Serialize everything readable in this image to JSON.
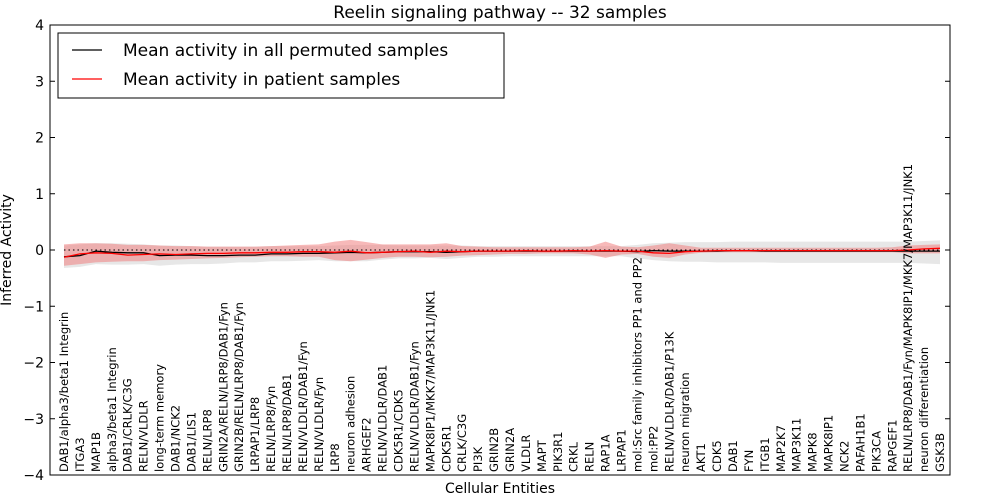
{
  "chart_data": {
    "type": "line",
    "title": "Reelin signaling pathway -- 32 samples",
    "xlabel": "Cellular Entities",
    "ylabel": "Inferred Activity",
    "ylim": [
      -4,
      4
    ],
    "yticks": [
      "−4",
      "−3",
      "−2",
      "−1",
      "0",
      "1",
      "2",
      "3",
      "4"
    ],
    "grid": false,
    "legend_position": "top-left",
    "categories": [
      "DAB1/alpha3/beta1 Integrin",
      "ITGA3",
      "MAP1B",
      "alpha3/beta1 Integrin",
      "DAB1/CRLK/C3G",
      "RELN/VLDLR",
      "long-term memory",
      "DAB1/NCK2",
      "DAB1/LIS1",
      "RELN/LRP8",
      "GRIN2A/RELN/LRP8/DAB1/Fyn",
      "GRIN2B/RELN/LRP8/DAB1/Fyn",
      "LRPAP1/LRP8",
      "RELN/LRP8/Fyn",
      "RELN/LRP8/DAB1",
      "RELN/VLDLR/DAB1/Fyn",
      "RELN/VLDLR/Fyn",
      "LRP8",
      "neuron adhesion",
      "ARHGEF2",
      "RELN/VLDLR/DAB1",
      "CDK5R1/CDK5",
      "RELN/VLDLR/DAB1/Fyn",
      "MAPK8IP1/MKK7/MAP3K11/JNK1",
      "CDK5R1",
      "CRLK/C3G",
      "PI3K",
      "GRIN2B",
      "GRIN2A",
      "VLDLR",
      "MAPT",
      "PIK3R1",
      "CRKL",
      "RELN",
      "RAP1A",
      "LRPAP1",
      "mol:Src family inhibitors PP1 and PP2",
      "mol:PP2",
      "RELN/VLDLR/DAB1/P13K",
      "neuron migration",
      "AKT1",
      "CDK5",
      "DAB1",
      "FYN",
      "ITGB1",
      "MAP2K7",
      "MAP3K11",
      "MAPK8",
      "MAPK8IP1",
      "NCK2",
      "PAFAH1B1",
      "PIK3CA",
      "RAPGEF1",
      "RELN/LRP8/DAB1/Fyn/MAPK8IP1/MKK7/MAP3K11/JNK1",
      "neuron differentiation",
      "GSK3B"
    ],
    "series": [
      {
        "name": "Mean activity in all permuted samples",
        "color": "#000000",
        "style": "solid",
        "values": [
          -0.12,
          -0.1,
          -0.02,
          -0.04,
          -0.05,
          -0.05,
          -0.1,
          -0.09,
          -0.09,
          -0.1,
          -0.1,
          -0.09,
          -0.09,
          -0.07,
          -0.07,
          -0.06,
          -0.06,
          -0.05,
          -0.04,
          -0.05,
          -0.04,
          -0.03,
          -0.03,
          -0.03,
          -0.04,
          -0.03,
          -0.02,
          -0.02,
          -0.02,
          -0.02,
          -0.02,
          -0.02,
          -0.02,
          -0.02,
          -0.02,
          -0.02,
          -0.03,
          -0.01,
          -0.02,
          -0.02,
          -0.02,
          -0.02,
          -0.01,
          -0.01,
          -0.02,
          -0.02,
          -0.02,
          -0.02,
          -0.02,
          -0.02,
          -0.02,
          -0.02,
          -0.02,
          -0.02,
          -0.02,
          -0.02
        ],
        "band_low": [
          -0.32,
          -0.3,
          -0.25,
          -0.26,
          -0.26,
          -0.25,
          -0.28,
          -0.26,
          -0.25,
          -0.25,
          -0.24,
          -0.22,
          -0.22,
          -0.2,
          -0.2,
          -0.19,
          -0.18,
          -0.2,
          -0.2,
          -0.2,
          -0.17,
          -0.15,
          -0.15,
          -0.14,
          -0.16,
          -0.14,
          -0.12,
          -0.12,
          -0.11,
          -0.11,
          -0.11,
          -0.11,
          -0.11,
          -0.11,
          -0.11,
          -0.11,
          -0.15,
          -0.18,
          -0.2,
          -0.21,
          -0.21,
          -0.22,
          -0.22,
          -0.22,
          -0.22,
          -0.23,
          -0.23,
          -0.23,
          -0.23,
          -0.23,
          -0.23,
          -0.23,
          -0.23,
          -0.23,
          -0.24,
          -0.25
        ],
        "band_high": [
          0.08,
          0.1,
          0.12,
          0.12,
          0.11,
          0.1,
          0.08,
          0.08,
          0.07,
          0.06,
          0.06,
          0.06,
          0.06,
          0.07,
          0.07,
          0.07,
          0.07,
          0.08,
          0.09,
          0.09,
          0.09,
          0.08,
          0.08,
          0.08,
          0.08,
          0.08,
          0.07,
          0.07,
          0.07,
          0.07,
          0.07,
          0.07,
          0.07,
          0.07,
          0.07,
          0.07,
          0.09,
          0.12,
          0.13,
          0.14,
          0.14,
          0.14,
          0.15,
          0.15,
          0.15,
          0.15,
          0.15,
          0.15,
          0.15,
          0.15,
          0.15,
          0.15,
          0.15,
          0.15,
          0.16,
          0.17
        ]
      },
      {
        "name": "Mean activity in patient samples",
        "color": "#ff0000",
        "style": "solid",
        "values": [
          -0.13,
          -0.07,
          -0.05,
          -0.06,
          -0.09,
          -0.08,
          -0.07,
          -0.08,
          -0.07,
          -0.06,
          -0.06,
          -0.05,
          -0.05,
          -0.04,
          -0.04,
          -0.03,
          -0.03,
          -0.04,
          -0.02,
          -0.05,
          -0.04,
          -0.03,
          -0.02,
          -0.04,
          -0.02,
          -0.03,
          -0.02,
          -0.02,
          -0.02,
          -0.01,
          -0.02,
          -0.02,
          -0.01,
          -0.02,
          -0.01,
          -0.02,
          -0.02,
          -0.05,
          -0.06,
          -0.03,
          -0.02,
          -0.01,
          -0.01,
          -0.01,
          -0.01,
          -0.01,
          -0.01,
          -0.01,
          -0.01,
          -0.01,
          -0.01,
          -0.01,
          -0.01,
          0.0,
          0.02,
          0.03
        ],
        "band_low": [
          -0.28,
          -0.25,
          -0.22,
          -0.21,
          -0.2,
          -0.2,
          -0.18,
          -0.17,
          -0.16,
          -0.15,
          -0.14,
          -0.13,
          -0.12,
          -0.11,
          -0.11,
          -0.12,
          -0.12,
          -0.18,
          -0.2,
          -0.17,
          -0.14,
          -0.12,
          -0.12,
          -0.13,
          -0.12,
          -0.1,
          -0.09,
          -0.08,
          -0.07,
          -0.07,
          -0.06,
          -0.06,
          -0.06,
          -0.08,
          -0.14,
          -0.08,
          -0.07,
          -0.12,
          -0.14,
          -0.08,
          -0.05,
          -0.04,
          -0.04,
          -0.04,
          -0.04,
          -0.04,
          -0.04,
          -0.04,
          -0.04,
          -0.04,
          -0.04,
          -0.04,
          -0.04,
          -0.06,
          -0.06,
          -0.06
        ],
        "band_high": [
          0.1,
          0.12,
          0.12,
          0.11,
          0.09,
          0.09,
          0.08,
          0.07,
          0.07,
          0.06,
          0.06,
          0.06,
          0.06,
          0.07,
          0.08,
          0.09,
          0.1,
          0.15,
          0.18,
          0.14,
          0.1,
          0.1,
          0.1,
          0.1,
          0.12,
          0.07,
          0.06,
          0.05,
          0.05,
          0.05,
          0.05,
          0.05,
          0.05,
          0.06,
          0.15,
          0.06,
          0.05,
          0.08,
          0.12,
          0.08,
          0.04,
          0.04,
          0.04,
          0.04,
          0.04,
          0.04,
          0.04,
          0.04,
          0.04,
          0.04,
          0.04,
          0.04,
          0.05,
          0.08,
          0.09,
          0.1
        ]
      }
    ],
    "reference_line": {
      "value": 0,
      "style": "dotted",
      "color": "#000000"
    }
  }
}
